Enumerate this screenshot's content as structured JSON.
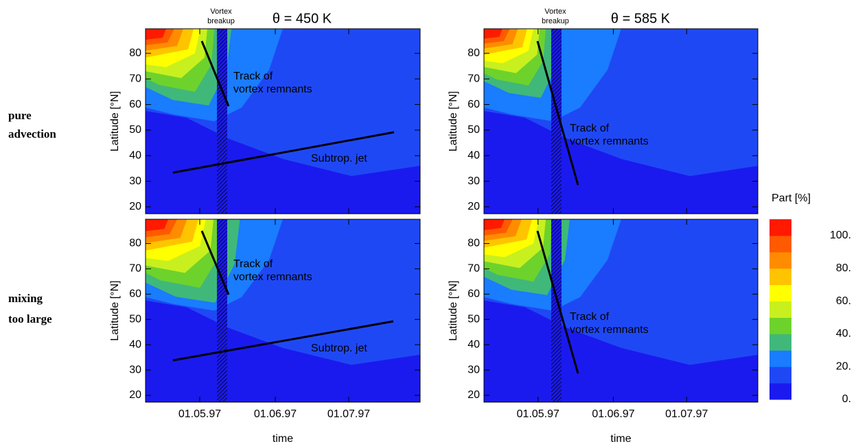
{
  "chart_data": {
    "type": "contour",
    "column_titles": [
      "θ = 450 K",
      "θ = 585 K"
    ],
    "row_labels": [
      [
        "pure",
        "advection"
      ],
      [
        "mixing",
        "too large"
      ]
    ],
    "vortex_breakup": [
      "Vortex",
      "breakup"
    ],
    "ylabel": "Latitude [°N]",
    "xlabel": "time",
    "ylim": [
      17.3,
      89.6
    ],
    "yticks": [
      20,
      30,
      40,
      50,
      60,
      70,
      80
    ],
    "xticks": [
      "01.05.97",
      "01.06.97",
      "01.07.97"
    ],
    "track_label": [
      "Track of",
      "vortex remnants"
    ],
    "jet_label": "Subtrop. jet",
    "colorbar": {
      "label": "Part [%]",
      "lim": [
        0,
        110
      ],
      "ticks": [
        {
          "value": 0,
          "label": "0."
        },
        {
          "value": 20,
          "label": "20."
        },
        {
          "value": 40,
          "label": "40."
        },
        {
          "value": 60,
          "label": "60."
        },
        {
          "value": 80,
          "label": "80."
        },
        {
          "value": 100,
          "label": "100."
        }
      ],
      "colors": [
        "#1a1aee",
        "#1f48f5",
        "#1a7cff",
        "#40b87a",
        "#6ed22c",
        "#c8f01e",
        "#ffff00",
        "#ffc400",
        "#ff8c00",
        "#ff5a00",
        "#ff1a00"
      ]
    }
  }
}
